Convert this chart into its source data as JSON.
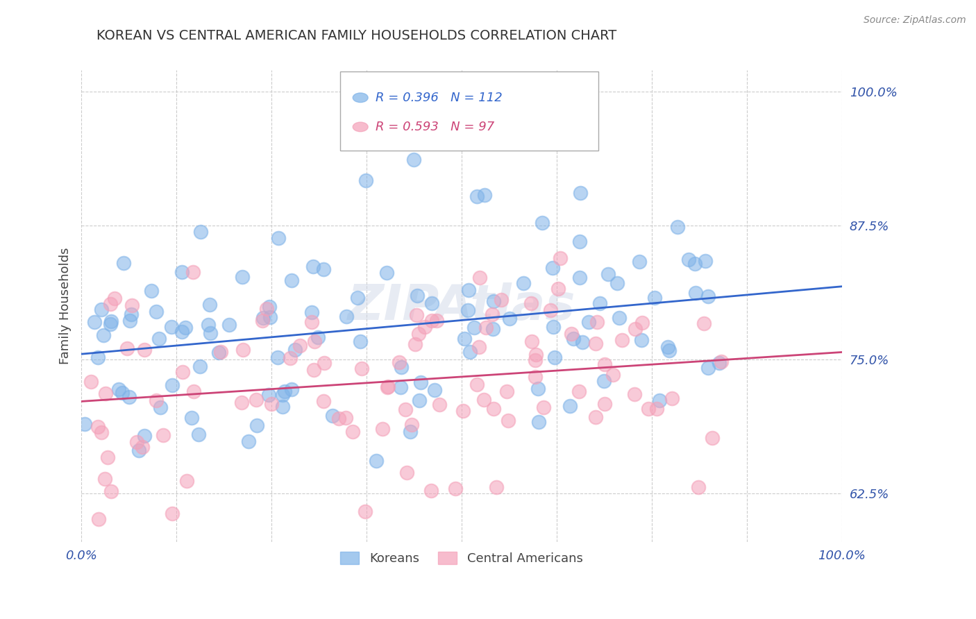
{
  "title": "KOREAN VS CENTRAL AMERICAN FAMILY HOUSEHOLDS CORRELATION CHART",
  "source": "Source: ZipAtlas.com",
  "ylabel": "Family Households",
  "xlabel": "",
  "xlim": [
    0,
    1
  ],
  "ylim": [
    0.58,
    1.02
  ],
  "yticks": [
    0.625,
    0.75,
    0.875,
    1.0
  ],
  "ytick_labels": [
    "62.5%",
    "75.0%",
    "87.5%",
    "100.0%"
  ],
  "xticks": [
    0,
    0.125,
    0.25,
    0.375,
    0.5,
    0.625,
    0.75,
    0.875,
    1.0
  ],
  "xtick_labels": [
    "0.0%",
    "",
    "",
    "",
    "",
    "",
    "",
    "",
    "100.0%"
  ],
  "korean_color": "#7EB2E8",
  "central_american_color": "#F4A0B8",
  "korean_line_color": "#3366CC",
  "central_american_line_color": "#CC4477",
  "korean_R": 0.396,
  "korean_N": 112,
  "central_american_R": 0.593,
  "central_american_N": 97,
  "watermark": "ZIPAtlas",
  "background_color": "#ffffff",
  "grid_color": "#cccccc",
  "tick_label_color": "#3355AA",
  "title_color": "#333333",
  "source_color": "#888888",
  "legend_label_korean": "Koreans",
  "legend_label_central": "Central Americans"
}
